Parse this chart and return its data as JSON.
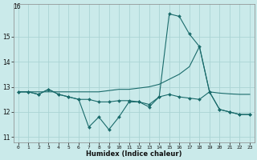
{
  "xlabel": "Humidex (Indice chaleur)",
  "xlim": [
    -0.5,
    23.5
  ],
  "ylim": [
    10.8,
    16.3
  ],
  "yticks": [
    11,
    12,
    13,
    14,
    15
  ],
  "xticks": [
    0,
    1,
    2,
    3,
    4,
    5,
    6,
    7,
    8,
    9,
    10,
    11,
    12,
    13,
    14,
    15,
    16,
    17,
    18,
    19,
    20,
    21,
    22,
    23
  ],
  "bg_color": "#caeaea",
  "grid_color": "#aad4d4",
  "line_color": "#1a6b6b",
  "line1_x": [
    0,
    1,
    2,
    3,
    4,
    5,
    6,
    7,
    8,
    9,
    10,
    11,
    12,
    13,
    14,
    15,
    16,
    17,
    18,
    19,
    20,
    21,
    22,
    23
  ],
  "line1_y": [
    12.8,
    12.8,
    12.7,
    12.9,
    12.7,
    12.6,
    12.5,
    11.4,
    11.8,
    11.3,
    11.8,
    12.4,
    12.4,
    12.2,
    12.6,
    15.9,
    15.8,
    15.1,
    14.6,
    12.8,
    12.1,
    12.0,
    11.9,
    11.9
  ],
  "line2_x": [
    0,
    1,
    2,
    3,
    4,
    5,
    6,
    7,
    8,
    9,
    10,
    11,
    12,
    13,
    14,
    15,
    16,
    17,
    18,
    19,
    20,
    21,
    22,
    23
  ],
  "line2_y": [
    12.8,
    12.8,
    12.8,
    12.8,
    12.8,
    12.8,
    12.8,
    12.8,
    12.8,
    12.85,
    12.9,
    12.9,
    12.95,
    13.0,
    13.1,
    13.3,
    13.5,
    13.8,
    14.6,
    12.8,
    12.75,
    12.72,
    12.7,
    12.7
  ],
  "line3_x": [
    0,
    1,
    2,
    3,
    4,
    5,
    6,
    7,
    8,
    9,
    10,
    11,
    12,
    13,
    14,
    15,
    16,
    17,
    18,
    19,
    20,
    21,
    22,
    23
  ],
  "line3_y": [
    12.8,
    12.8,
    12.7,
    12.9,
    12.7,
    12.6,
    12.5,
    12.5,
    12.4,
    12.4,
    12.45,
    12.45,
    12.4,
    12.3,
    12.6,
    12.7,
    12.6,
    12.55,
    12.5,
    12.8,
    12.1,
    12.0,
    11.9,
    11.9
  ],
  "ytop_label": "16"
}
